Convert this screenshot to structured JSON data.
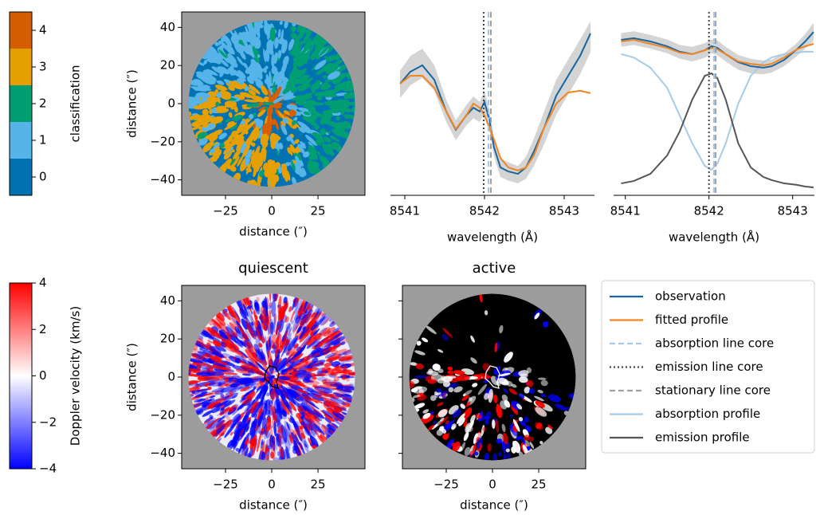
{
  "chart_data": [
    {
      "type": "colorbar",
      "label": "classification",
      "ylim": [
        -0.5,
        4.5
      ],
      "yticks": [
        0,
        1,
        2,
        3,
        4
      ],
      "colors": [
        "#0072b2",
        "#56b4e9",
        "#009e73",
        "#e69f00",
        "#d55e00"
      ]
    },
    {
      "type": "image",
      "xlabel": "distance (″)",
      "ylabel": "distance (″)",
      "xlim": [
        -48.7,
        50.4
      ],
      "ylim": [
        -48.1,
        48.1
      ],
      "xticks": [
        {
          "value": -25,
          "label": "−25"
        },
        0,
        25
      ],
      "yticks": [
        {
          "value": -40,
          "label": "−40"
        },
        {
          "value": -20,
          "label": "−20"
        },
        0,
        20,
        40
      ]
    },
    {
      "type": "line",
      "xlabel": "wavelength (Å)",
      "xlim": [
        8540.82,
        8543.38
      ],
      "ylim": [
        0,
        100
      ],
      "xticks": [
        8541,
        8542,
        8543
      ],
      "x": [
        8540.94,
        8541.07,
        8541.22,
        8541.37,
        8541.52,
        8541.64,
        8541.77,
        8541.86,
        8541.94,
        8542.0,
        8542.06,
        8542.12,
        8542.2,
        8542.3,
        8542.42,
        8542.52,
        8542.62,
        8542.75,
        8542.9,
        8543.05,
        8543.2,
        8543.33
      ],
      "series": [
        {
          "color": "#1866a0",
          "values": [
            60.9,
            67.4,
            70.9,
            63.0,
            45.7,
            35.7,
            43.5,
            47.8,
            45.7,
            50.9,
            41.3,
            26.1,
            15.2,
            13.0,
            11.7,
            15.2,
            23.9,
            37.0,
            54.3,
            65.2,
            76.1,
            88.3
          ],
          "lower": [
            53.0,
            60.0,
            64.0,
            57.0,
            40.0,
            30.0,
            38.0,
            42.0,
            40.0,
            45.0,
            36.0,
            21.0,
            10.0,
            8.0,
            6.5,
            9.0,
            16.0,
            28.0,
            44.0,
            55.0,
            66.0,
            78.0
          ],
          "upper": [
            68.0,
            76.0,
            80.0,
            71.0,
            52.0,
            41.0,
            49.0,
            54.0,
            51.0,
            57.0,
            47.0,
            31.0,
            20.0,
            18.0,
            16.0,
            21.0,
            31.0,
            46.0,
            63.0,
            74.0,
            85.0,
            95.0
          ]
        },
        {
          "color": "#f28522",
          "values": [
            60.9,
            65.2,
            65.2,
            58.7,
            45.7,
            36.1,
            43.5,
            50.0,
            47.8,
            43.5,
            37.0,
            30.4,
            20.4,
            15.2,
            13.5,
            15.2,
            21.7,
            37.0,
            50.0,
            56.1,
            57.0,
            55.7
          ]
        }
      ],
      "vlines": [
        {
          "color": "#a6c8e8",
          "value": 8542.05,
          "style": "dashed"
        },
        {
          "color": "#444444",
          "value": 8541.99,
          "style": "dotted"
        },
        {
          "color": "#a0a0a0",
          "value": 8542.08,
          "style": "dashed"
        }
      ]
    },
    {
      "type": "line",
      "xlabel": "wavelength (Å)",
      "xlim": [
        8540.86,
        8543.26
      ],
      "ylim": [
        0,
        100
      ],
      "xticks": [
        8541,
        8542,
        8543
      ],
      "legend": true,
      "x": [
        8540.95,
        8541.1,
        8541.3,
        8541.5,
        8541.65,
        8541.8,
        8541.95,
        8542.03,
        8542.1,
        8542.2,
        8542.35,
        8542.5,
        8542.65,
        8542.75,
        8542.9,
        8543.05,
        8543.15,
        8543.25
      ],
      "series": [
        {
          "name": "observation",
          "color": "#1866a0",
          "values": [
            84.8,
            85.7,
            83.9,
            81.3,
            78.3,
            77.0,
            79.1,
            81.3,
            80.4,
            77.0,
            72.6,
            70.4,
            69.6,
            70.4,
            73.9,
            79.6,
            83.9,
            89.1
          ],
          "lower": [
            81.0,
            82.0,
            80.0,
            77.5,
            74.5,
            73.0,
            75.0,
            77.5,
            76.5,
            73.0,
            68.5,
            66.5,
            66.0,
            67.0,
            70.5,
            76.0,
            80.0,
            84.0
          ],
          "upper": [
            88.5,
            89.5,
            87.5,
            85.0,
            82.0,
            81.0,
            83.0,
            85.0,
            84.5,
            81.0,
            76.5,
            74.5,
            73.5,
            74.0,
            77.5,
            83.0,
            88.0,
            94.0
          ]
        },
        {
          "name": "fitted profile",
          "color": "#f28522",
          "values": [
            83.9,
            84.8,
            82.6,
            80.4,
            77.8,
            77.0,
            79.1,
            80.4,
            79.6,
            77.0,
            73.0,
            71.7,
            70.9,
            71.7,
            75.2,
            79.6,
            81.3,
            82.6
          ]
        },
        {
          "name": "absorption profile",
          "color": "#a6cbe8",
          "values": [
            77.0,
            75.2,
            69.6,
            58.7,
            43.5,
            28.3,
            16.1,
            13.9,
            17.4,
            28.3,
            50.0,
            65.2,
            72.6,
            75.2,
            77.0,
            77.8,
            78.3,
            78.3
          ]
        },
        {
          "name": "emission profile",
          "color": "#555555",
          "values": [
            6.5,
            7.8,
            11.7,
            21.7,
            34.8,
            52.2,
            65.2,
            66.5,
            63.9,
            52.2,
            28.3,
            15.2,
            10.0,
            8.3,
            6.5,
            5.7,
            4.8,
            4.3
          ]
        }
      ],
      "vlines": [
        {
          "name": "absorption line core",
          "color": "#a6c8e8",
          "value": 8542.06,
          "style": "dashed"
        },
        {
          "name": "emission line core",
          "color": "#444444",
          "value": 8542.0,
          "style": "dotted"
        },
        {
          "name": "stationary line core",
          "color": "#a0a0a0",
          "value": 8542.08,
          "style": "dashed"
        }
      ]
    },
    {
      "type": "colorbar",
      "label": "Doppler velocity (km/s)",
      "ylim": [
        -4,
        4
      ],
      "yticks": [
        {
          "value": -4,
          "label": "−4"
        },
        {
          "value": -2,
          "label": "−2"
        },
        0,
        2,
        4
      ],
      "colors": [
        "#0000ff",
        "#ffffff",
        "#ff0000"
      ]
    },
    {
      "type": "image",
      "title": "quiescent",
      "xlabel": "distance (″)",
      "ylabel": "distance (″)",
      "xlim": [
        -48.7,
        50.4
      ],
      "ylim": [
        -48.1,
        48.1
      ],
      "xticks": [
        {
          "value": -25,
          "label": "−25"
        },
        0,
        25
      ],
      "yticks": [
        {
          "value": -40,
          "label": "−40"
        },
        {
          "value": -20,
          "label": "−20"
        },
        0,
        20,
        40
      ]
    },
    {
      "type": "image",
      "title": "active",
      "xlabel": "distance (″)",
      "xlim": [
        -48.7,
        50.4
      ],
      "ylim": [
        -48.1,
        48.1
      ],
      "ytick_labels": false,
      "xticks": [
        {
          "value": -25,
          "label": "−25"
        },
        0,
        25
      ],
      "yticks": [
        {
          "value": -40,
          "label": "−40"
        },
        {
          "value": -20,
          "label": "−20"
        },
        0,
        20,
        40
      ]
    }
  ]
}
